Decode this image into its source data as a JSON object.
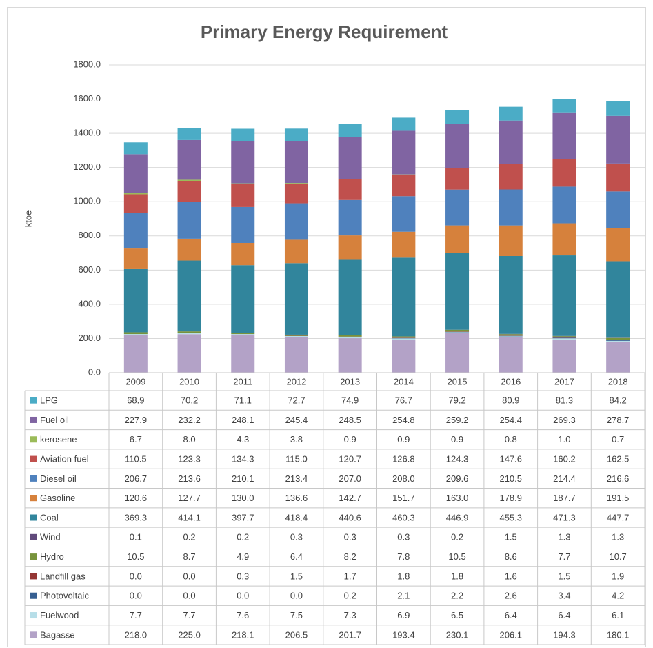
{
  "chart_data": {
    "type": "bar",
    "stacked": true,
    "title": "Primary Energy Requirement",
    "y_label": "ktoe",
    "categories": [
      "2009",
      "2010",
      "2011",
      "2012",
      "2013",
      "2014",
      "2015",
      "2016",
      "2017",
      "2018"
    ],
    "ylim": [
      0,
      1800
    ],
    "yticks": [
      {
        "value": 0,
        "label": "0.0"
      },
      {
        "value": 200,
        "label": "200.0"
      },
      {
        "value": 400,
        "label": "400.0"
      },
      {
        "value": 600,
        "label": "600.0"
      },
      {
        "value": 800,
        "label": "800.0"
      },
      {
        "value": 1000,
        "label": "1000.0"
      },
      {
        "value": 1200,
        "label": "1200.0"
      },
      {
        "value": 1400,
        "label": "1400.0"
      },
      {
        "value": 1600,
        "label": "1600.0"
      },
      {
        "value": 1800,
        "label": "1800.0"
      }
    ],
    "grid": true,
    "series": [
      {
        "name": "LPG",
        "color": "#4bacc6",
        "values": [
          68.9,
          70.2,
          71.1,
          72.7,
          74.9,
          76.7,
          79.2,
          80.9,
          81.3,
          84.2
        ],
        "value_labels": [
          "68.9",
          "70.2",
          "71.1",
          "72.7",
          "74.9",
          "76.7",
          "79.2",
          "80.9",
          "81.3",
          "84.2"
        ]
      },
      {
        "name": "Fuel oil",
        "color": "#8064a2",
        "values": [
          227.9,
          232.2,
          248.1,
          245.4,
          248.5,
          254.8,
          259.2,
          254.4,
          269.3,
          278.7
        ],
        "value_labels": [
          "227.9",
          "232.2",
          "248.1",
          "245.4",
          "248.5",
          "254.8",
          "259.2",
          "254.4",
          "269.3",
          "278.7"
        ]
      },
      {
        "name": "kerosene",
        "color": "#9bbb59",
        "values": [
          6.7,
          8.0,
          4.3,
          3.8,
          0.9,
          0.9,
          0.9,
          0.8,
          1.0,
          0.7
        ],
        "value_labels": [
          "6.7",
          "8.0",
          "4.3",
          "3.8",
          "0.9",
          "0.9",
          "0.9",
          "0.8",
          "1.0",
          "0.7"
        ]
      },
      {
        "name": "Aviation fuel",
        "color": "#c0504d",
        "values": [
          110.5,
          123.3,
          134.3,
          115.0,
          120.7,
          126.8,
          124.3,
          147.6,
          160.2,
          162.5
        ],
        "value_labels": [
          "110.5",
          "123.3",
          "134.3",
          "115.0",
          "120.7",
          "126.8",
          "124.3",
          "147.6",
          "160.2",
          "162.5"
        ]
      },
      {
        "name": "Diesel oil",
        "color": "#4f81bd",
        "values": [
          206.7,
          213.6,
          210.1,
          213.4,
          207.0,
          208.0,
          209.6,
          210.5,
          214.4,
          216.6
        ],
        "value_labels": [
          "206.7",
          "213.6",
          "210.1",
          "213.4",
          "207.0",
          "208.0",
          "209.6",
          "210.5",
          "214.4",
          "216.6"
        ]
      },
      {
        "name": "Gasoline",
        "color": "#d6813c",
        "values": [
          120.6,
          127.7,
          130.0,
          136.6,
          142.7,
          151.7,
          163.0,
          178.9,
          187.7,
          191.5
        ],
        "value_labels": [
          "120.6",
          "127.7",
          "130.0",
          "136.6",
          "142.7",
          "151.7",
          "163.0",
          "178.9",
          "187.7",
          "191.5"
        ]
      },
      {
        "name": "Coal",
        "color": "#31859c",
        "values": [
          369.3,
          414.1,
          397.7,
          418.4,
          440.6,
          460.3,
          446.9,
          455.3,
          471.3,
          447.7
        ],
        "value_labels": [
          "369.3",
          "414.1",
          "397.7",
          "418.4",
          "440.6",
          "460.3",
          "446.9",
          "455.3",
          "471.3",
          "447.7"
        ]
      },
      {
        "name": "Wind",
        "color": "#604a7b",
        "values": [
          0.1,
          0.2,
          0.2,
          0.3,
          0.3,
          0.3,
          0.2,
          1.5,
          1.3,
          1.3
        ],
        "value_labels": [
          "0.1",
          "0.2",
          "0.2",
          "0.3",
          "0.3",
          "0.3",
          "0.2",
          "1.5",
          "1.3",
          "1.3"
        ]
      },
      {
        "name": "Hydro",
        "color": "#77933c",
        "values": [
          10.5,
          8.7,
          4.9,
          6.4,
          8.2,
          7.8,
          10.5,
          8.6,
          7.7,
          10.7
        ],
        "value_labels": [
          "10.5",
          "8.7",
          "4.9",
          "6.4",
          "8.2",
          "7.8",
          "10.5",
          "8.6",
          "7.7",
          "10.7"
        ]
      },
      {
        "name": "Landfill gas",
        "color": "#943634",
        "values": [
          0.0,
          0.0,
          0.3,
          1.5,
          1.7,
          1.8,
          1.8,
          1.6,
          1.5,
          1.9
        ],
        "value_labels": [
          "0.0",
          "0.0",
          "0.3",
          "1.5",
          "1.7",
          "1.8",
          "1.8",
          "1.6",
          "1.5",
          "1.9"
        ]
      },
      {
        "name": "Photovoltaic",
        "color": "#365f91",
        "values": [
          0.0,
          0.0,
          0.0,
          0.0,
          0.2,
          2.1,
          2.2,
          2.6,
          3.4,
          4.2
        ],
        "value_labels": [
          "0.0",
          "0.0",
          "0.0",
          "0.0",
          "0.2",
          "2.1",
          "2.2",
          "2.6",
          "3.4",
          "4.2"
        ]
      },
      {
        "name": "Fuelwood",
        "color": "#b7dee8",
        "values": [
          7.7,
          7.7,
          7.6,
          7.5,
          7.3,
          6.9,
          6.5,
          6.4,
          6.4,
          6.1
        ],
        "value_labels": [
          "7.7",
          "7.7",
          "7.6",
          "7.5",
          "7.3",
          "6.9",
          "6.5",
          "6.4",
          "6.4",
          "6.1"
        ]
      },
      {
        "name": "Bagasse",
        "color": "#b3a2c7",
        "values": [
          218.0,
          225.0,
          218.1,
          206.5,
          201.7,
          193.4,
          230.1,
          206.1,
          194.3,
          180.1
        ],
        "value_labels": [
          "218.0",
          "225.0",
          "218.1",
          "206.5",
          "201.7",
          "193.4",
          "230.1",
          "206.1",
          "194.3",
          "180.1"
        ]
      }
    ]
  }
}
